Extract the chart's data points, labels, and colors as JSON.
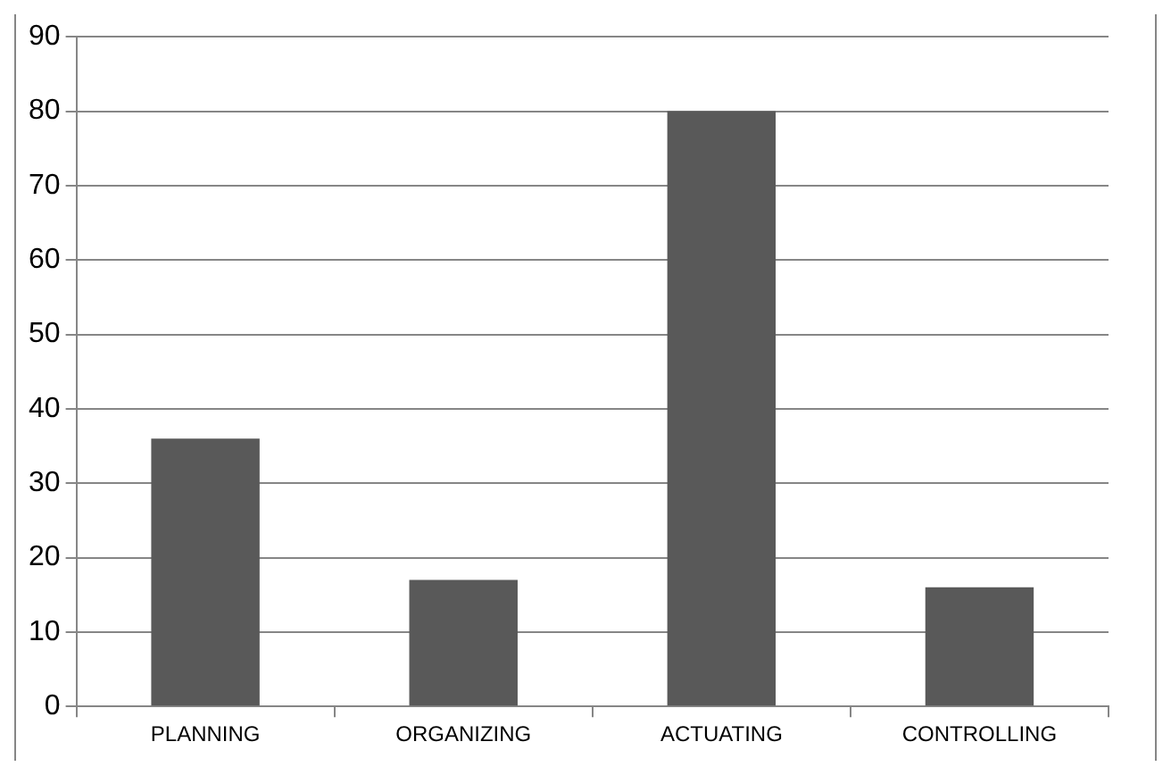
{
  "chart_data": {
    "type": "bar",
    "categories": [
      "PLANNING",
      "ORGANIZING",
      "ACTUATING",
      "CONTROLLING"
    ],
    "values": [
      36,
      17,
      80,
      16
    ],
    "color": "#595959",
    "ylim": [
      0,
      90
    ],
    "yticks": [
      0,
      10,
      20,
      30,
      40,
      50,
      60,
      70,
      80,
      90
    ],
    "grid": "y",
    "legend": false
  }
}
